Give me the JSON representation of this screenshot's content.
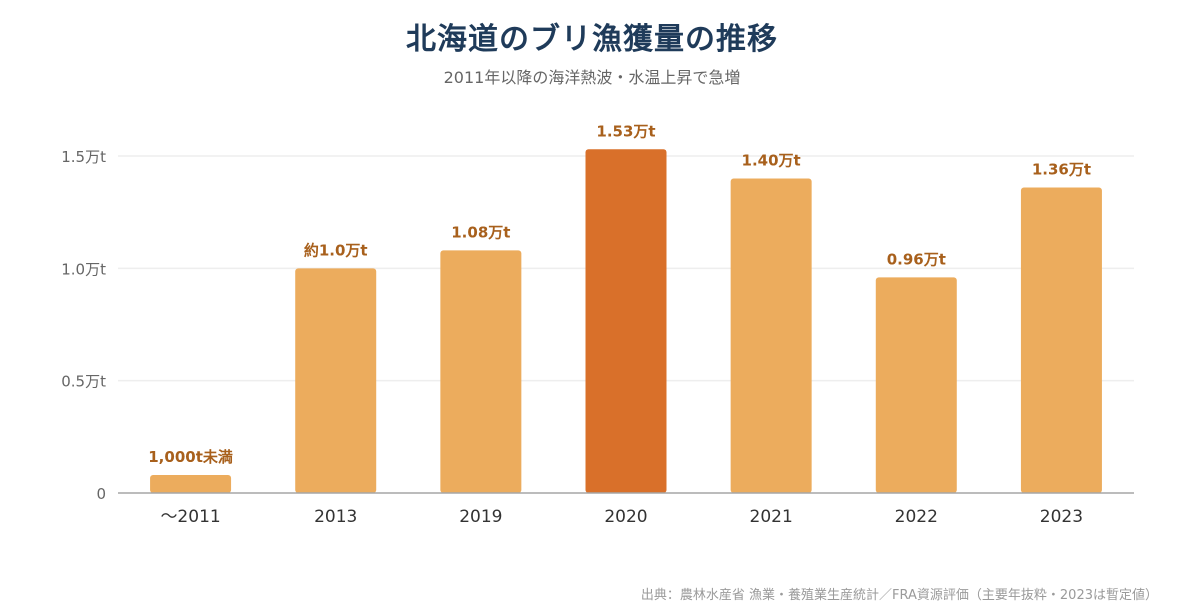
{
  "title": "北海道のブリ漁獲量の推移",
  "subtitle": "2011年以降の海洋熱波・水温上昇で急増",
  "source": "出典：農林水産省 漁業・養殖業生産統計／FRA資源評価（主要年抜粋・2023は暫定値）",
  "colors": {
    "bar": "#ecac5d",
    "highlight": "#d9702a",
    "value_label": "#a8601c",
    "axis_text": "#666666",
    "grid": "#eeeeee",
    "baseline": "#a6a6a6"
  },
  "chart_data": {
    "type": "bar",
    "categories": [
      "〜2011",
      "2013",
      "2019",
      "2020",
      "2021",
      "2022",
      "2023"
    ],
    "values": [
      0.08,
      1.0,
      1.08,
      1.53,
      1.4,
      0.96,
      1.36
    ],
    "value_labels": [
      "1,000t未満",
      "約1.0万t",
      "1.08万t",
      "1.53万t",
      "1.40万t",
      "0.96万t",
      "1.36万t"
    ],
    "highlight_category": "2020",
    "ylim": [
      0,
      1.5
    ],
    "yticks": [
      0,
      0.5,
      1.0,
      1.5
    ],
    "ytick_labels": [
      "0",
      "0.5万t",
      "1.0万t",
      "1.5万t"
    ],
    "xlabel": "",
    "ylabel": "",
    "grid": true,
    "legend": "none"
  }
}
